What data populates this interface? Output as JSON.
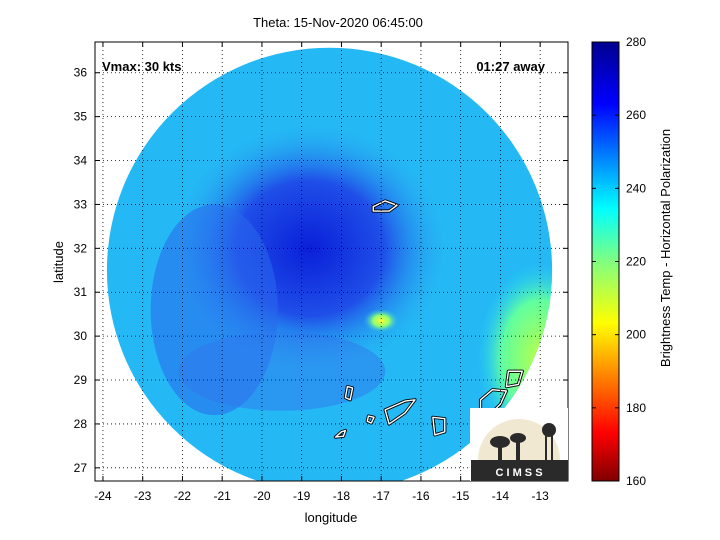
{
  "chart_data": {
    "type": "heatmap",
    "title": "Theta: 15-Nov-2020 06:45:00",
    "xlabel": "longitude",
    "ylabel": "latitude",
    "xlim": [
      -24.2,
      -12.3
    ],
    "ylim": [
      26.7,
      36.7
    ],
    "xticks": [
      -24,
      -23,
      -22,
      -21,
      -20,
      -19,
      -18,
      -17,
      -16,
      -15,
      -14,
      -13
    ],
    "yticks": [
      27,
      28,
      29,
      30,
      31,
      32,
      33,
      34,
      35,
      36
    ],
    "grid": true,
    "annotations": {
      "vmax": "Vmax: 30 kts",
      "away": "01:27 away"
    },
    "colorbar": {
      "label": "Brightness Temp - Horizontal Polarization",
      "range": [
        160,
        280
      ],
      "ticks": [
        160,
        180,
        200,
        220,
        240,
        260,
        280
      ],
      "colormap": "jet"
    },
    "swath": {
      "center_lon": -18.3,
      "center_lat": 31.5,
      "radius_deg": 5.6
    },
    "features": [
      {
        "name": "storm-core-cold-region",
        "lon": -18.8,
        "lat": 32.0,
        "value": 262
      },
      {
        "name": "warm-spot",
        "lon": -17.0,
        "lat": 30.35,
        "value": 205
      },
      {
        "name": "background",
        "value": 240
      },
      {
        "name": "coastal-warm-region",
        "lon": -13.0,
        "lat": 29.5,
        "value": 225
      }
    ],
    "islands": [
      "El Hierro",
      "La Palma",
      "La Gomera",
      "Tenerife",
      "Gran Canaria",
      "Fuerteventura",
      "Lanzarote"
    ]
  },
  "logo": {
    "text": "C I M S S",
    "colors": {
      "sky": "#f0e8d0",
      "ground": "#2a2a2a"
    }
  }
}
